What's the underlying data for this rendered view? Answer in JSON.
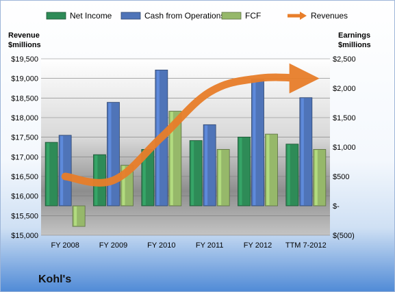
{
  "chart_data": {
    "type": "bar",
    "company": "Kohl's",
    "categories": [
      "FY 2008",
      "FY 2009",
      "FY 2010",
      "FY 2011",
      "FY 2012",
      "TTM 7-2012"
    ],
    "series": [
      {
        "name": "Net Income",
        "axis": "right",
        "color": "#2e8b57",
        "values": [
          1080,
          870,
          960,
          1110,
          1170,
          1050
        ]
      },
      {
        "name": "Cash from Operations",
        "axis": "right",
        "color": "#4f74b8",
        "values": [
          1200,
          1760,
          2310,
          1380,
          2150,
          1840
        ]
      },
      {
        "name": "FCF",
        "axis": "right",
        "color": "#96b86a",
        "values": [
          -350,
          690,
          1610,
          960,
          1220,
          960
        ]
      },
      {
        "name": "Revenues",
        "axis": "left",
        "color": "#e87e2a",
        "type": "line",
        "values": [
          16500,
          16400,
          17500,
          18650,
          19000,
          19000
        ]
      }
    ],
    "ylabel_left": "Revenue\n$millions",
    "ylabel_right": "Earnings\n$millions",
    "ylim_left": [
      15000,
      19500
    ],
    "ylim_right": [
      -500,
      2500
    ],
    "left_ticks": [
      "$19,500",
      "$19,000",
      "$18,500",
      "$18,000",
      "$17,500",
      "$17,000",
      "$16,500",
      "$16,000",
      "$15,500",
      "$15,000"
    ],
    "right_ticks": [
      "$2,500",
      "$2,000",
      "$1,500",
      "$1,000",
      "$500",
      "$-",
      "$(500)"
    ],
    "legend_position": "top",
    "grid": true
  }
}
